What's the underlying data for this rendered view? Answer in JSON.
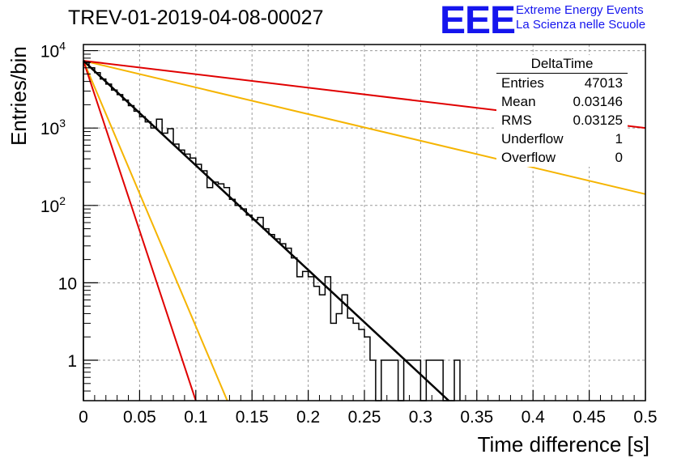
{
  "header": {
    "title": "TREV-01-2019-04-08-00027",
    "logo": "EEE",
    "logo_line1": "Extreme Energy Events",
    "logo_line2": "La Scienza nelle Scuole"
  },
  "stats_box": {
    "name": "DeltaTime",
    "rows": [
      {
        "label": "Entries",
        "value": "47013"
      },
      {
        "label": "Mean",
        "value": "0.03146"
      },
      {
        "label": "RMS",
        "value": "0.03125"
      },
      {
        "label": "Underflow",
        "value": "1"
      },
      {
        "label": "Overflow",
        "value": "0"
      }
    ]
  },
  "chart_data": {
    "type": "line",
    "xlabel": "Time difference [s]",
    "ylabel": "Entries/bin",
    "xlim": [
      0,
      0.5
    ],
    "ylim": [
      0.3,
      12000
    ],
    "yscale": "log",
    "grid": true,
    "x_ticks": [
      "0",
      "0.05",
      "0.1",
      "0.15",
      "0.2",
      "0.25",
      "0.3",
      "0.35",
      "0.4",
      "0.45",
      "0.5"
    ],
    "y_ticks": [
      {
        "value": 1,
        "label": "1"
      },
      {
        "value": 10,
        "label": "10"
      },
      {
        "value": 100,
        "label": "10",
        "exp": "2"
      },
      {
        "value": 1000,
        "label": "10",
        "exp": "3"
      },
      {
        "value": 10000,
        "label": "10",
        "exp": "4"
      }
    ],
    "histogram": {
      "name": "DeltaTime",
      "color": "#000000",
      "bin_width": 0.005,
      "x_start": 0,
      "values": [
        7100,
        6000,
        5200,
        4300,
        3700,
        3100,
        2700,
        2300,
        1950,
        1650,
        1400,
        1200,
        1000,
        1300,
        860,
        980,
        620,
        520,
        460,
        410,
        340,
        280,
        170,
        200,
        190,
        170,
        120,
        100,
        90,
        75,
        65,
        70,
        50,
        42,
        37,
        32,
        28,
        21,
        12,
        14,
        12,
        9,
        7,
        12,
        3,
        4,
        7,
        3.5,
        3,
        2.5,
        2,
        1,
        0,
        1,
        1,
        1,
        0,
        1,
        1,
        1,
        0,
        1,
        1,
        1,
        0,
        0,
        1
      ]
    },
    "fit_lines": [
      {
        "color": "#000000",
        "x": [
          0,
          0.325
        ],
        "y": [
          7400,
          0.3
        ]
      },
      {
        "color": "#f5b400",
        "x": [
          0,
          0.128
        ],
        "y": [
          7400,
          0.3
        ]
      },
      {
        "color": "#e00000",
        "x": [
          0,
          0.1
        ],
        "y": [
          7400,
          0.3
        ]
      },
      {
        "color": "#f5b400",
        "x": [
          0,
          0.5
        ],
        "y": [
          7400,
          140
        ]
      },
      {
        "color": "#e00000",
        "x": [
          0,
          0.5
        ],
        "y": [
          7400,
          1000
        ]
      }
    ]
  }
}
